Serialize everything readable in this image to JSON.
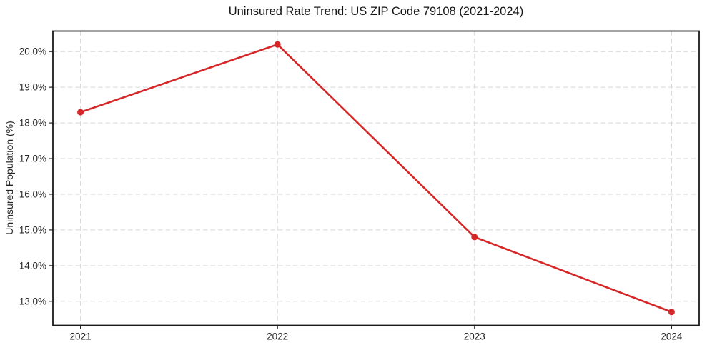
{
  "chart_data": {
    "type": "line",
    "title": "Uninsured Rate Trend: US ZIP Code 79108 (2021-2024)",
    "xlabel": "",
    "ylabel": "Uninsured Population (%)",
    "x": [
      2021,
      2022,
      2023,
      2024
    ],
    "values": [
      18.3,
      20.2,
      14.8,
      12.7
    ],
    "xlim": [
      2020.86,
      2024.14
    ],
    "ylim": [
      12.325,
      20.575
    ],
    "xticks": [
      2021,
      2022,
      2023,
      2024
    ],
    "xtick_labels": [
      "2021",
      "2022",
      "2023",
      "2024"
    ],
    "yticks": [
      13,
      14,
      15,
      16,
      17,
      18,
      19,
      20
    ],
    "ytick_labels": [
      "13.0%",
      "14.0%",
      "15.0%",
      "16.0%",
      "17.0%",
      "18.0%",
      "19.0%",
      "20.0%"
    ],
    "grid": true,
    "grid_style": "dashed",
    "legend": "none",
    "colors": {
      "line": "#d62728",
      "marker": "#d62728",
      "grid": "#d6d6d6",
      "frame": "#1a1a1a",
      "tick_text": "#262626",
      "background": "#ffffff"
    }
  }
}
